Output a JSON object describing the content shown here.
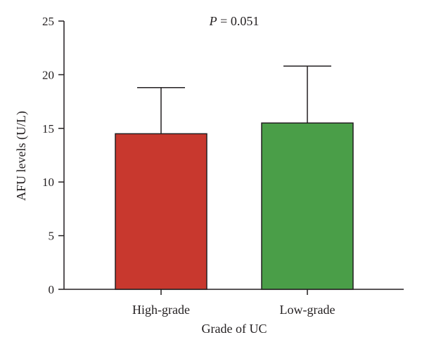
{
  "chart_data": {
    "type": "bar",
    "title": "",
    "xlabel": "Grade of UC",
    "ylabel": "AFU levels (U/L)",
    "ylim": [
      0,
      25
    ],
    "yticks": [
      0,
      5,
      10,
      15,
      20,
      25
    ],
    "grid": false,
    "legend": "none",
    "categories": [
      "High-grade",
      "Low-grade"
    ],
    "values": [
      14.5,
      15.5
    ],
    "error_upper": [
      18.8,
      20.8
    ],
    "colors": [
      "#c8382e",
      "#4a9e48"
    ],
    "annotation": {
      "prefix": "P",
      "text": " = 0.051"
    }
  }
}
